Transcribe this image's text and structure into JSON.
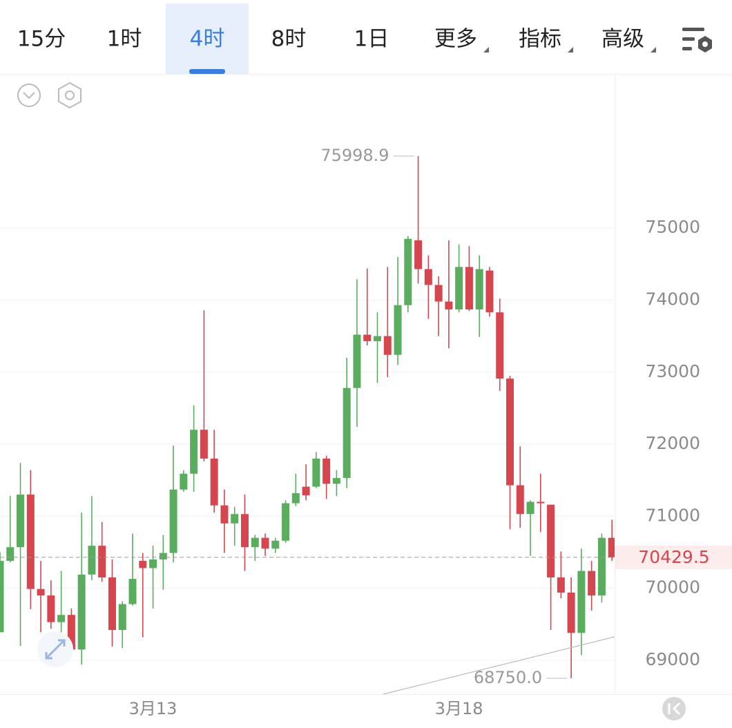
{
  "toolbar": {
    "tabs": [
      "15分",
      "1时",
      "4时",
      "8时",
      "1日",
      "更多",
      "指标",
      "高级"
    ],
    "active": 2
  },
  "chart_data": {
    "type": "candlestick",
    "categories": [
      null,
      null,
      null,
      null,
      null,
      null,
      null,
      null,
      null,
      null,
      null,
      null,
      null,
      null,
      null,
      "3月13",
      null,
      null,
      null,
      null,
      null,
      null,
      null,
      null,
      null,
      null,
      null,
      null,
      null,
      null,
      null,
      null,
      null,
      null,
      null,
      null,
      null,
      null,
      null,
      null,
      null,
      null,
      null,
      null,
      null,
      "3月18",
      null,
      null,
      null,
      null,
      null,
      null,
      null,
      null,
      null,
      null,
      null,
      null,
      null,
      null,
      null
    ],
    "open": [
      69390,
      70380,
      70570,
      71300,
      69990,
      69900,
      69530,
      69630,
      69150,
      70190,
      70590,
      70150,
      69420,
      69780,
      70380,
      70280,
      70400,
      70490,
      71370,
      71590,
      72200,
      71800,
      71150,
      70900,
      71030,
      70570,
      70700,
      70550,
      70660,
      71180,
      71410,
      71410,
      71800,
      71450,
      71530,
      72780,
      73520,
      73430,
      73500,
      73240,
      73930,
      74830,
      74430,
      74210,
      73980,
      73870,
      74460,
      73870,
      74410,
      73830,
      72910,
      71430,
      71030,
      71200,
      71160,
      70150,
      69940,
      69380,
      70240,
      69900,
      70700
    ],
    "high": [
      70500,
      71280,
      71740,
      71640,
      70380,
      70110,
      70240,
      69720,
      71050,
      71280,
      70920,
      70400,
      69820,
      70760,
      70490,
      70590,
      70740,
      71980,
      71640,
      72540,
      73860,
      72200,
      71370,
      71130,
      71300,
      70740,
      70760,
      70700,
      71220,
      71590,
      71720,
      71890,
      71840,
      71640,
      73200,
      74290,
      74440,
      73830,
      74460,
      74600,
      74890,
      75998.9,
      74620,
      74330,
      74830,
      74770,
      74750,
      74620,
      74460,
      74020,
      72950,
      71970,
      71220,
      71590,
      71160,
      70510,
      70150,
      70550,
      70380,
      70760,
      70950
    ],
    "low": [
      69390,
      70360,
      69200,
      69710,
      69390,
      69440,
      69150,
      69100,
      68940,
      70110,
      70090,
      69190,
      69170,
      69760,
      69320,
      69720,
      69980,
      70360,
      71340,
      71340,
      71760,
      71050,
      70490,
      70590,
      70240,
      70380,
      70450,
      70490,
      70630,
      71140,
      71220,
      71390,
      71240,
      71280,
      71390,
      72240,
      73370,
      72850,
      72930,
      73100,
      73830,
      74230,
      73740,
      73500,
      73330,
      73830,
      73850,
      73490,
      73770,
      72740,
      70820,
      70840,
      70450,
      70780,
      69420,
      69860,
      68750,
      69070,
      69690,
      69800,
      70380
    ],
    "close": [
      70380,
      70570,
      71300,
      69990,
      69900,
      69530,
      69630,
      69150,
      70190,
      70590,
      70150,
      69420,
      69780,
      70130,
      70280,
      70400,
      70490,
      71370,
      71590,
      72200,
      71800,
      71150,
      70900,
      71030,
      70570,
      70700,
      70550,
      70660,
      71180,
      71320,
      71290,
      71800,
      71450,
      71530,
      72780,
      73520,
      73430,
      73500,
      73240,
      73930,
      74850,
      74430,
      74210,
      73980,
      73870,
      74460,
      73870,
      74430,
      73830,
      72910,
      71430,
      71030,
      71200,
      71180,
      70150,
      69940,
      69380,
      70240,
      69900,
      70700,
      70429.5
    ],
    "up_color": "#5aad5e",
    "down_color": "#d5464f",
    "ylim": [
      68530,
      77130
    ],
    "yticks": [
      75000,
      74000,
      73000,
      72000,
      71000,
      70000,
      69000
    ],
    "grid": true,
    "current_price": 70429.5,
    "high_label": 75998.9,
    "low_label": {
      "value": 68750,
      "label": "68750.0"
    }
  }
}
